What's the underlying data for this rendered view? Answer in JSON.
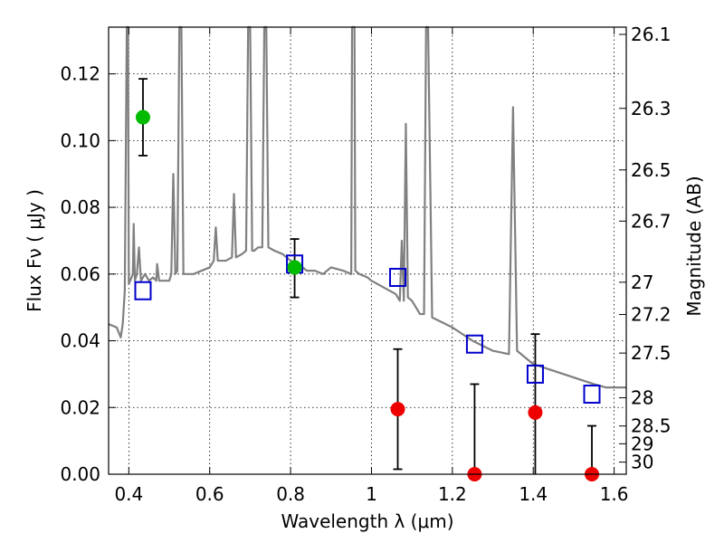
{
  "chart_data": {
    "type": "scatter",
    "xlabel": "Wavelength  λ (μm)",
    "ylabel": "Flux  Fν  ( μJy )",
    "ylabel_right": "Magnitude (AB)",
    "xlim": [
      0.35,
      1.63
    ],
    "ylim": [
      0.0,
      0.134
    ],
    "grid": true,
    "colors": {
      "spectrum": "#808080",
      "model_photometry": "#0000cc",
      "detection": "#00bb00",
      "non_detection": "#ee0000",
      "errorbar": "#000000"
    },
    "x_ticks": [
      {
        "value": 0.4,
        "label": "0.4"
      },
      {
        "value": 0.6,
        "label": "0.6"
      },
      {
        "value": 0.8,
        "label": "0.8"
      },
      {
        "value": 1.0,
        "label": "1"
      },
      {
        "value": 1.2,
        "label": "1.2"
      },
      {
        "value": 1.4,
        "label": "1.4"
      },
      {
        "value": 1.6,
        "label": "1.6"
      }
    ],
    "y_ticks": [
      {
        "value": 0.0,
        "label": "0.00"
      },
      {
        "value": 0.02,
        "label": "0.02"
      },
      {
        "value": 0.04,
        "label": "0.04"
      },
      {
        "value": 0.06,
        "label": "0.06"
      },
      {
        "value": 0.08,
        "label": "0.08"
      },
      {
        "value": 0.1,
        "label": "0.10"
      },
      {
        "value": 0.12,
        "label": "0.12"
      }
    ],
    "mag_ticks": [
      {
        "value": 26.1,
        "label": "26.1"
      },
      {
        "value": 26.3,
        "label": "26.3"
      },
      {
        "value": 26.5,
        "label": "26.5"
      },
      {
        "value": 26.7,
        "label": "26.7"
      },
      {
        "value": 27.0,
        "label": "27"
      },
      {
        "value": 27.2,
        "label": "27.2"
      },
      {
        "value": 27.5,
        "label": "27.5"
      },
      {
        "value": 28.0,
        "label": "28"
      },
      {
        "value": 28.5,
        "label": "28.5"
      },
      {
        "value": 29.0,
        "label": "29"
      },
      {
        "value": 30.0,
        "label": "30"
      }
    ],
    "spectrum": [
      [
        0.35,
        0.045
      ],
      [
        0.37,
        0.044
      ],
      [
        0.38,
        0.041
      ],
      [
        0.385,
        0.045
      ],
      [
        0.39,
        0.055
      ],
      [
        0.395,
        0.134
      ],
      [
        0.398,
        0.134
      ],
      [
        0.4,
        0.057
      ],
      [
        0.41,
        0.06
      ],
      [
        0.412,
        0.075
      ],
      [
        0.415,
        0.058
      ],
      [
        0.42,
        0.06
      ],
      [
        0.425,
        0.068
      ],
      [
        0.43,
        0.058
      ],
      [
        0.44,
        0.06
      ],
      [
        0.45,
        0.058
      ],
      [
        0.46,
        0.059
      ],
      [
        0.468,
        0.058
      ],
      [
        0.47,
        0.063
      ],
      [
        0.475,
        0.058
      ],
      [
        0.5,
        0.058
      ],
      [
        0.505,
        0.06
      ],
      [
        0.51,
        0.09
      ],
      [
        0.515,
        0.06
      ],
      [
        0.52,
        0.061
      ],
      [
        0.525,
        0.134
      ],
      [
        0.53,
        0.134
      ],
      [
        0.535,
        0.06
      ],
      [
        0.56,
        0.06
      ],
      [
        0.6,
        0.062
      ],
      [
        0.61,
        0.064
      ],
      [
        0.615,
        0.074
      ],
      [
        0.62,
        0.064
      ],
      [
        0.64,
        0.064
      ],
      [
        0.655,
        0.065
      ],
      [
        0.66,
        0.084
      ],
      [
        0.665,
        0.065
      ],
      [
        0.68,
        0.066
      ],
      [
        0.69,
        0.067
      ],
      [
        0.695,
        0.134
      ],
      [
        0.7,
        0.134
      ],
      [
        0.705,
        0.067
      ],
      [
        0.71,
        0.067
      ],
      [
        0.72,
        0.068
      ],
      [
        0.73,
        0.068
      ],
      [
        0.735,
        0.134
      ],
      [
        0.74,
        0.134
      ],
      [
        0.745,
        0.068
      ],
      [
        0.76,
        0.067
      ],
      [
        0.78,
        0.066
      ],
      [
        0.8,
        0.064
      ],
      [
        0.82,
        0.063
      ],
      [
        0.84,
        0.061
      ],
      [
        0.86,
        0.061
      ],
      [
        0.88,
        0.06
      ],
      [
        0.9,
        0.062
      ],
      [
        0.93,
        0.061
      ],
      [
        0.95,
        0.06
      ],
      [
        0.952,
        0.134
      ],
      [
        0.958,
        0.134
      ],
      [
        0.96,
        0.061
      ],
      [
        0.97,
        0.06
      ],
      [
        0.99,
        0.059
      ],
      [
        1.0,
        0.058
      ],
      [
        1.03,
        0.056
      ],
      [
        1.06,
        0.054
      ],
      [
        1.07,
        0.052
      ],
      [
        1.075,
        0.07
      ],
      [
        1.08,
        0.052
      ],
      [
        1.085,
        0.105
      ],
      [
        1.09,
        0.053
      ],
      [
        1.1,
        0.052
      ],
      [
        1.12,
        0.048
      ],
      [
        1.13,
        0.048
      ],
      [
        1.135,
        0.134
      ],
      [
        1.14,
        0.134
      ],
      [
        1.15,
        0.047
      ],
      [
        1.2,
        0.044
      ],
      [
        1.25,
        0.04
      ],
      [
        1.3,
        0.037
      ],
      [
        1.34,
        0.036
      ],
      [
        1.35,
        0.11
      ],
      [
        1.36,
        0.037
      ],
      [
        1.4,
        0.033
      ],
      [
        1.45,
        0.031
      ],
      [
        1.5,
        0.029
      ],
      [
        1.55,
        0.027
      ],
      [
        1.58,
        0.026
      ],
      [
        1.6,
        0.026
      ],
      [
        1.63,
        0.026
      ]
    ],
    "model_photometry": [
      {
        "x": 0.435,
        "y": 0.055
      },
      {
        "x": 0.81,
        "y": 0.063
      },
      {
        "x": 1.065,
        "y": 0.059
      },
      {
        "x": 1.255,
        "y": 0.039
      },
      {
        "x": 1.405,
        "y": 0.03
      },
      {
        "x": 1.545,
        "y": 0.024
      }
    ],
    "detections": [
      {
        "x": 0.435,
        "y": 0.107,
        "yerr_low": 0.0955,
        "yerr_high": 0.1185
      },
      {
        "x": 0.81,
        "y": 0.062,
        "yerr_low": 0.053,
        "yerr_high": 0.0705
      }
    ],
    "non_detections": [
      {
        "x": 1.065,
        "y": 0.0195,
        "yerr_low": 0.0015,
        "yerr_high": 0.0375
      },
      {
        "x": 1.255,
        "y": 0.0,
        "yerr_low": 0.0,
        "yerr_high": 0.027
      },
      {
        "x": 1.405,
        "y": 0.0185,
        "yerr_low": 0.0,
        "yerr_high": 0.042
      },
      {
        "x": 1.545,
        "y": 0.0,
        "yerr_low": 0.0,
        "yerr_high": 0.0145
      }
    ]
  }
}
